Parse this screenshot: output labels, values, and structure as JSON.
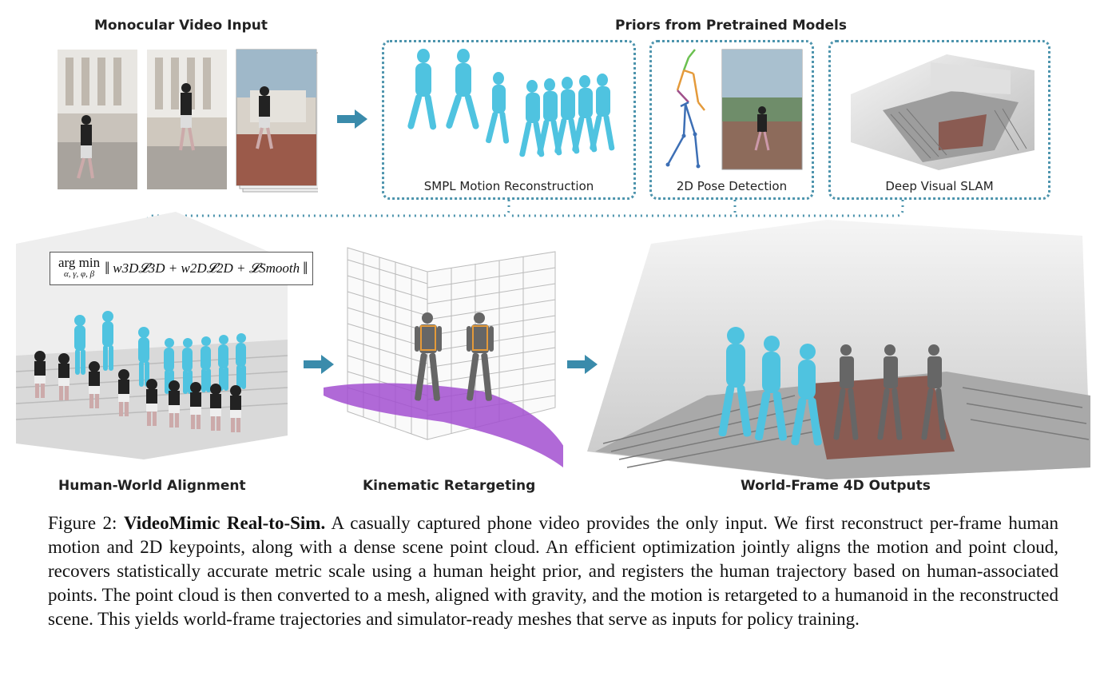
{
  "sections": {
    "monocular": "Monocular Video Input",
    "priors": "Priors from Pretrained Models"
  },
  "prior_labels": {
    "smpl": "SMPL Motion Reconstruction",
    "pose": "2D Pose Detection",
    "slam": "Deep Visual SLAM"
  },
  "stage_labels": {
    "alignment": "Human-World Alignment",
    "retarget": "Kinematic Retargeting",
    "outputs": "World-Frame 4D Outputs"
  },
  "formula": {
    "argmin": "arg min",
    "vars": "α, γ, φ, β",
    "expr": "w3D𝓛3D + w2D𝓛2D + 𝓛Smooth"
  },
  "caption": {
    "fig_label": "Figure 2:",
    "title": "VideoMimic Real-to-Sim.",
    "body": "A casually captured phone video provides the only input. We first reconstruct per-frame human motion and 2D keypoints, along with a dense scene point cloud. An efficient optimization jointly aligns the motion and point cloud, recovers statistically accurate metric scale using a human height prior, and registers the human trajectory based on human-associated points. The point cloud is then converted to a mesh, aligned with gravity, and the motion is retargeted to a humanoid in the reconstructed scene. This yields world-frame trajectories and simulator-ready meshes that serve as inputs for policy training."
  },
  "colors": {
    "accent": "#3a8bab",
    "human": "#4fc3e0",
    "mesh": "#a24fd0",
    "robot": "#666666"
  }
}
